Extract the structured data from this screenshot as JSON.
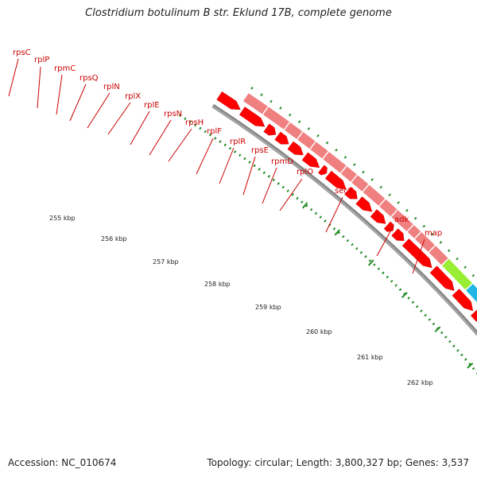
{
  "title": "Clostridium botulinum B str. Eklund 17B, complete genome",
  "footer": {
    "accession": "Accession: NC_010674",
    "summary": "Topology: circular; Length: 3,800,327 bp; Genes: 3,537"
  },
  "colors": {
    "gene_fill": "#ff0000",
    "gene_band": "#f08080",
    "secY_band": "#99ee33",
    "adk_band": "#1fb6e6",
    "backbone": "#888888",
    "ticks": "#228b22",
    "label": "#cc0000"
  },
  "genes": [
    {
      "name": "rpsC",
      "band": "gene_band"
    },
    {
      "name": "rplP",
      "band": "gene_band"
    },
    {
      "name": "rpmC",
      "band": "gene_band"
    },
    {
      "name": "rpsQ",
      "band": "gene_band"
    },
    {
      "name": "rplN",
      "band": "gene_band"
    },
    {
      "name": "rplX",
      "band": "gene_band"
    },
    {
      "name": "rplE",
      "band": "gene_band"
    },
    {
      "name": "rpsN",
      "band": "gene_band"
    },
    {
      "name": "rpsH",
      "band": "gene_band"
    },
    {
      "name": "rplF",
      "band": "gene_band"
    },
    {
      "name": "rplR",
      "band": "gene_band"
    },
    {
      "name": "rpsE",
      "band": "gene_band"
    },
    {
      "name": "rpmD",
      "band": "gene_band"
    },
    {
      "name": "rplO",
      "band": "gene_band"
    },
    {
      "name": "secY",
      "band": "secY_band"
    },
    {
      "name": "adk",
      "band": "adk_band"
    },
    {
      "name": "map",
      "band": "gene_band"
    }
  ],
  "kbp_labels": [
    "255 kbp",
    "256 kbp",
    "257 kbp",
    "258 kbp",
    "259 kbp",
    "260 kbp",
    "261 kbp",
    "262 kbp"
  ]
}
